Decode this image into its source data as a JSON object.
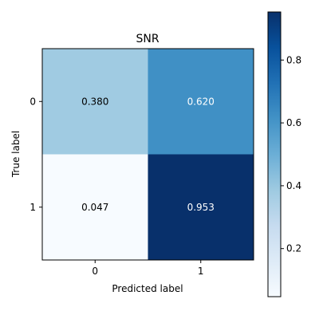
{
  "chart_data": {
    "type": "heatmap",
    "title": "SNR",
    "xlabel": "Predicted label",
    "ylabel": "True label",
    "x_categories": [
      "0",
      "1"
    ],
    "y_categories": [
      "0",
      "1"
    ],
    "values": [
      [
        0.38,
        0.62
      ],
      [
        0.047,
        0.953
      ]
    ],
    "cell_labels": [
      [
        "0.380",
        "0.620"
      ],
      [
        "0.047",
        "0.953"
      ]
    ],
    "colormap": "Blues",
    "colorbar": {
      "range": [
        0.047,
        0.953
      ],
      "ticks": [
        0.2,
        0.4,
        0.6,
        0.8
      ],
      "tick_labels": [
        "0.2",
        "0.4",
        "0.6",
        "0.8"
      ]
    }
  }
}
